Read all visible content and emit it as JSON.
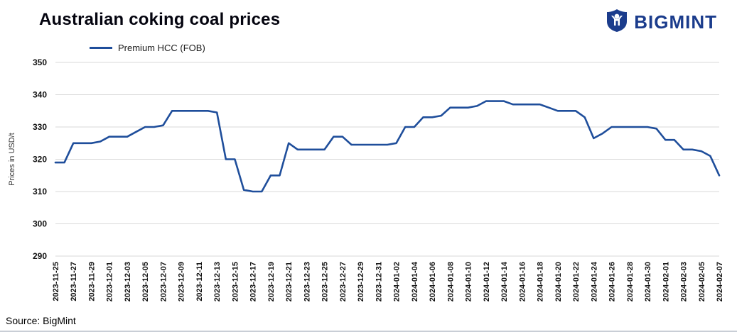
{
  "header": {
    "title": "Australian coking coal prices"
  },
  "logo": {
    "text": "BIGMINT",
    "color": "#1b3c8c",
    "icon": "bigmint-person-icon"
  },
  "legend": {
    "label": "Premium HCC (FOB)"
  },
  "source": {
    "text": "Source: BigMint"
  },
  "chart_data": {
    "type": "line",
    "title": "Australian coking coal prices",
    "xlabel": "",
    "ylabel": "Prices in USD/t",
    "ylim": [
      290,
      350
    ],
    "yticks": [
      290,
      300,
      310,
      320,
      330,
      340,
      350
    ],
    "grid": true,
    "legend_position": "top-left",
    "line_color": "#1f4e9b",
    "xticks_every": 2,
    "x": [
      "2023-11-25",
      "2023-11-26",
      "2023-11-27",
      "2023-11-28",
      "2023-11-29",
      "2023-11-30",
      "2023-12-01",
      "2023-12-02",
      "2023-12-03",
      "2023-12-04",
      "2023-12-05",
      "2023-12-06",
      "2023-12-07",
      "2023-12-08",
      "2023-12-09",
      "2023-12-10",
      "2023-12-11",
      "2023-12-12",
      "2023-12-13",
      "2023-12-14",
      "2023-12-15",
      "2023-12-16",
      "2023-12-17",
      "2023-12-18",
      "2023-12-19",
      "2023-12-20",
      "2023-12-21",
      "2023-12-22",
      "2023-12-23",
      "2023-12-24",
      "2023-12-25",
      "2023-12-26",
      "2023-12-27",
      "2023-12-28",
      "2023-12-29",
      "2023-12-30",
      "2023-12-31",
      "2024-01-01",
      "2024-01-02",
      "2024-01-03",
      "2024-01-04",
      "2024-01-05",
      "2024-01-06",
      "2024-01-07",
      "2024-01-08",
      "2024-01-09",
      "2024-01-10",
      "2024-01-11",
      "2024-01-12",
      "2024-01-13",
      "2024-01-14",
      "2024-01-15",
      "2024-01-16",
      "2024-01-17",
      "2024-01-18",
      "2024-01-19",
      "2024-01-20",
      "2024-01-21",
      "2024-01-22",
      "2024-01-23",
      "2024-01-24",
      "2024-01-25",
      "2024-01-26",
      "2024-01-27",
      "2024-01-28",
      "2024-01-29",
      "2024-01-30",
      "2024-01-31",
      "2024-02-01",
      "2024-02-02",
      "2024-02-03",
      "2024-02-04",
      "2024-02-05",
      "2024-02-06",
      "2024-02-07"
    ],
    "series": [
      {
        "name": "Premium HCC (FOB)",
        "values": [
          319,
          319,
          325,
          325,
          325,
          325.5,
          327,
          327,
          327,
          328.5,
          330,
          330,
          330.5,
          335,
          335,
          335,
          335,
          335,
          334.5,
          320,
          320,
          310.5,
          310,
          310,
          315,
          315,
          325,
          323,
          323,
          323,
          323,
          327,
          327,
          324.5,
          324.5,
          324.5,
          324.5,
          324.5,
          325,
          330,
          330,
          333,
          333,
          333.5,
          336,
          336,
          336,
          336.5,
          338,
          338,
          338,
          337,
          337,
          337,
          337,
          336,
          335,
          335,
          335,
          333,
          326.5,
          328,
          330,
          330,
          330,
          330,
          330,
          329.5,
          326,
          326,
          323,
          323,
          322.5,
          321,
          315
        ]
      }
    ]
  }
}
